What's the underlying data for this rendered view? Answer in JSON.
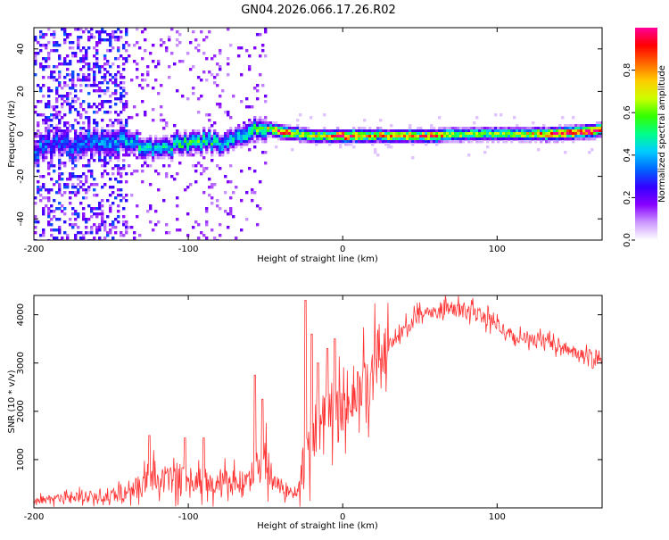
{
  "title": "GN04.2026.066.17.26.R02",
  "chart_data": [
    {
      "type": "heatmap",
      "name": "spectrogram",
      "xlabel": "Height of straight line (km)",
      "ylabel": "Frequency (Hz)",
      "xlim": [
        -200,
        168
      ],
      "ylim": [
        -50,
        50
      ],
      "xticks": [
        -200,
        -100,
        0,
        100
      ],
      "xtick_labels": [
        "-200",
        "-100",
        "0",
        "100"
      ],
      "yticks": [
        -40,
        -20,
        0,
        20,
        40
      ],
      "ytick_labels": [
        "-40",
        "-20",
        "0",
        "20",
        "40"
      ],
      "colorbar": {
        "label": "Normalized spectral amplitude",
        "range": [
          0,
          1
        ],
        "ticks": [
          0,
          0.2,
          0.4,
          0.6,
          0.8
        ],
        "tick_labels": [
          "0.0",
          "0.2",
          "0.4",
          "0.6",
          "0.8"
        ],
        "colormap": [
          "#ffffff",
          "#cc99ff",
          "#8800ff",
          "#3300ff",
          "#0066ff",
          "#00ccff",
          "#00ff88",
          "#33ff00",
          "#ccff00",
          "#ffcc00",
          "#ff6600",
          "#ff0000",
          "#ff0099"
        ]
      },
      "ridge": {
        "x": [
          -200,
          -180,
          -160,
          -140,
          -130,
          -120,
          -110,
          -100,
          -90,
          -80,
          -70,
          -60,
          -50,
          -40,
          -30,
          -20,
          -10,
          0,
          20,
          40,
          60,
          80,
          100,
          120,
          140,
          160,
          168
        ],
        "frequency": [
          -6,
          -5,
          -4,
          -3,
          -7,
          -8,
          -5,
          -4,
          -3,
          -4,
          -2,
          2,
          3,
          1,
          0,
          -1,
          -1,
          -1,
          -1,
          -1,
          -1,
          0,
          0,
          0,
          0,
          1,
          2
        ],
        "amplitude": [
          0.35,
          0.3,
          0.35,
          0.4,
          0.45,
          0.42,
          0.48,
          0.5,
          0.55,
          0.45,
          0.42,
          0.5,
          0.6,
          0.95,
          0.75,
          0.7,
          0.7,
          0.95,
          0.75,
          0.78,
          0.82,
          0.62,
          0.62,
          0.68,
          0.9,
          0.95,
          0.88
        ]
      },
      "noise_region": [
        -200,
        -140
      ],
      "sparse_region": [
        -140,
        -50
      ]
    },
    {
      "type": "line",
      "name": "snr",
      "xlabel": "Height of straight line (km)",
      "ylabel": "SNR (10 * v/v)",
      "color": "#ff3333",
      "xlim": [
        -200,
        168
      ],
      "ylim": [
        0,
        4400
      ],
      "xticks": [
        -200,
        -100,
        0,
        100
      ],
      "xtick_labels": [
        "-200",
        "-100",
        "0",
        "100"
      ],
      "yticks": [
        1000,
        2000,
        3000,
        4000
      ],
      "ytick_labels": [
        "1000",
        "2000",
        "3000",
        "4000"
      ],
      "x": [
        -200,
        -180,
        -160,
        -140,
        -130,
        -125,
        -120,
        -110,
        -100,
        -90,
        -80,
        -70,
        -60,
        -55,
        -50,
        -45,
        -40,
        -35,
        -30,
        -25,
        -20,
        -15,
        -10,
        -5,
        0,
        10,
        20,
        30,
        40,
        50,
        60,
        70,
        80,
        90,
        100,
        110,
        120,
        130,
        140,
        150,
        160,
        168
      ],
      "y": [
        150,
        200,
        250,
        300,
        500,
        700,
        650,
        550,
        600,
        500,
        550,
        520,
        600,
        800,
        1100,
        550,
        350,
        300,
        400,
        900,
        1300,
        1600,
        1900,
        2000,
        2150,
        2400,
        2900,
        3350,
        3700,
        4000,
        4100,
        4120,
        4100,
        3950,
        3800,
        3550,
        3500,
        3450,
        3350,
        3250,
        3150,
        3100
      ],
      "spikes": [
        {
          "x": -125,
          "y": 1500
        },
        {
          "x": -102,
          "y": 1450
        },
        {
          "x": -90,
          "y": 1450
        },
        {
          "x": -57,
          "y": 2750
        },
        {
          "x": -52,
          "y": 2250
        },
        {
          "x": -24,
          "y": 4300
        },
        {
          "x": -20,
          "y": 3600
        },
        {
          "x": -16,
          "y": 3000
        },
        {
          "x": -10,
          "y": 3300
        },
        {
          "x": -5,
          "y": 3500
        }
      ]
    }
  ]
}
